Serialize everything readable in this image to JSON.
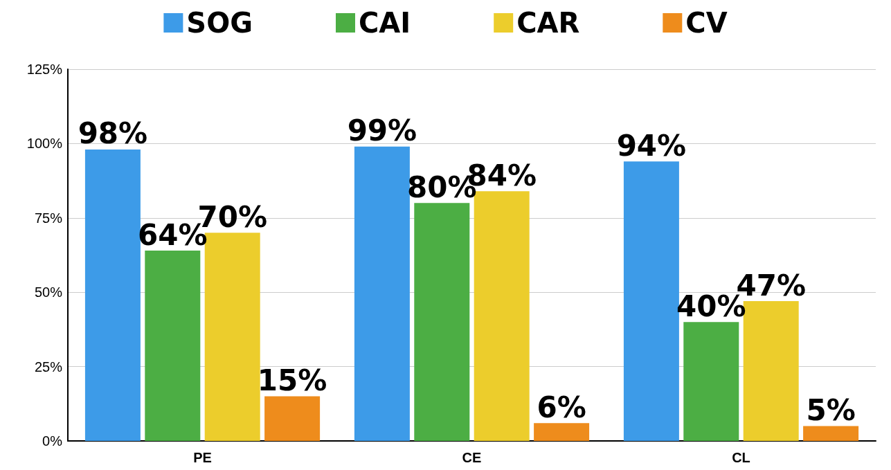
{
  "chart_data": {
    "type": "bar",
    "categories": [
      "PE",
      "CE",
      "CL"
    ],
    "series": [
      {
        "name": "SOG",
        "color": "#3d9be8",
        "values": [
          98,
          99,
          94
        ],
        "value_labels": [
          "98%",
          "99%",
          "94%"
        ]
      },
      {
        "name": "CAI",
        "color": "#4cae44",
        "values": [
          64,
          80,
          40
        ],
        "value_labels": [
          "64%",
          "80%",
          "40%"
        ]
      },
      {
        "name": "CAR",
        "color": "#eccd2c",
        "values": [
          70,
          84,
          47
        ],
        "value_labels": [
          "70%",
          "84%",
          "47%"
        ]
      },
      {
        "name": "CV",
        "color": "#ee8c1c",
        "values": [
          15,
          6,
          5
        ],
        "value_labels": [
          "15%",
          "6%",
          "5%"
        ]
      }
    ],
    "ylim": [
      0,
      125
    ],
    "yticks": [
      {
        "value": 0,
        "label": "0%"
      },
      {
        "value": 25,
        "label": "25%"
      },
      {
        "value": 50,
        "label": "50%"
      },
      {
        "value": 75,
        "label": "75%"
      },
      {
        "value": 100,
        "label": "100%"
      },
      {
        "value": 125,
        "label": "125%"
      }
    ],
    "grid": "y",
    "legend": "top"
  }
}
